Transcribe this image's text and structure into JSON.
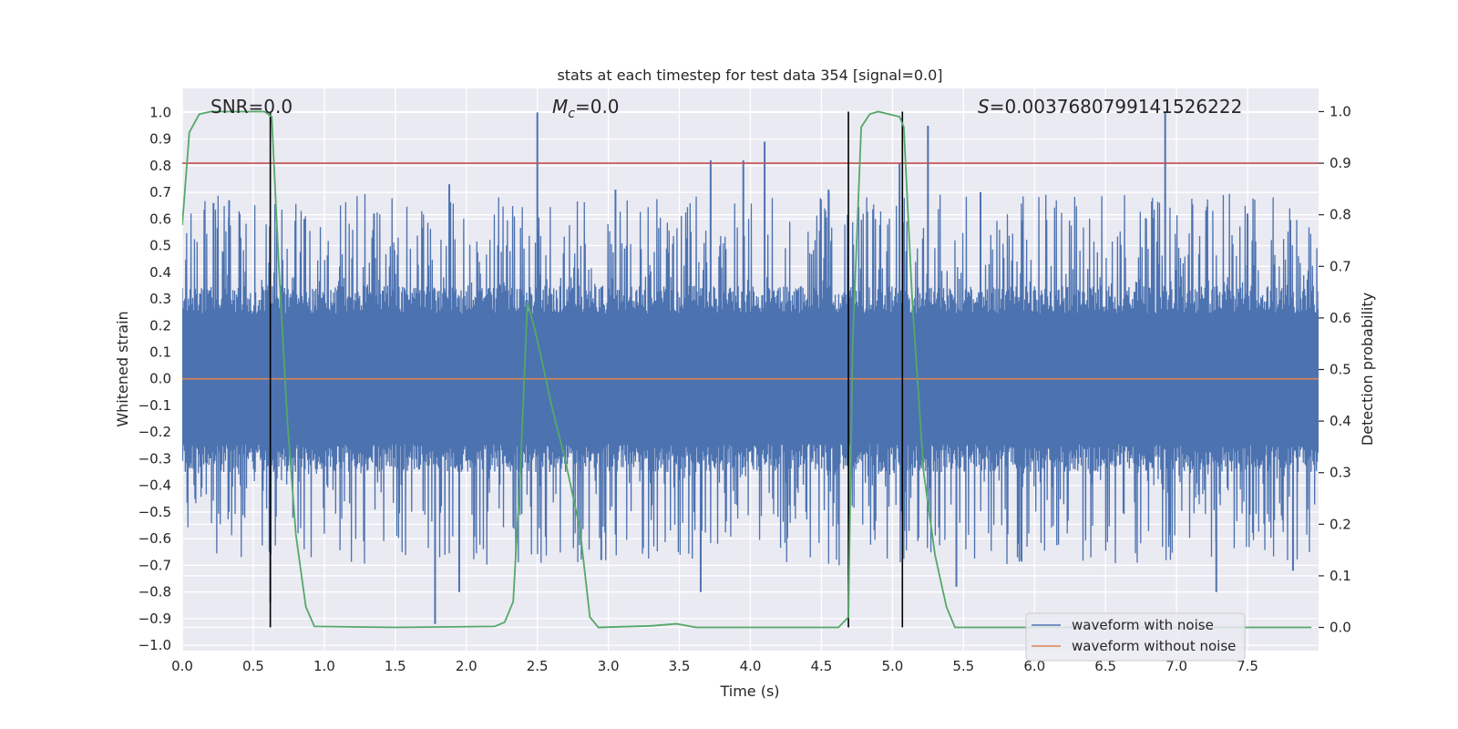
{
  "chart_data": {
    "type": "line",
    "title": "stats at each timestep for test data 354 [signal=0.0]",
    "xlabel": "Time (s)",
    "ylabel": "Whitened strain",
    "ylabel_right": "Detection probability",
    "xlim": [
      0.0,
      8.0
    ],
    "ylim": [
      -1.02,
      1.09
    ],
    "ylim_right": [
      -0.045,
      1.045
    ],
    "x_ticks": [
      0.0,
      0.5,
      1.0,
      1.5,
      2.0,
      2.5,
      3.0,
      3.5,
      4.0,
      4.5,
      5.0,
      5.5,
      6.0,
      6.5,
      7.0,
      7.5
    ],
    "x_tick_labels": [
      "0.0",
      "0.5",
      "1.0",
      "1.5",
      "2.0",
      "2.5",
      "3.0",
      "3.5",
      "4.0",
      "4.5",
      "5.0",
      "5.5",
      "6.0",
      "6.5",
      "7.0",
      "7.5"
    ],
    "y_ticks": [
      1.0,
      0.9,
      0.8,
      0.7,
      0.6,
      0.5,
      0.4,
      0.3,
      0.2,
      0.1,
      0.0,
      -0.1,
      -0.2,
      -0.3,
      -0.4,
      -0.5,
      -0.6,
      -0.7,
      -0.8,
      -0.9,
      -1.0
    ],
    "y_tick_labels": [
      "1.0",
      "0.9",
      "0.8",
      "0.7",
      "0.6",
      "0.5",
      "0.4",
      "0.3",
      "0.2",
      "0.1",
      "0.0",
      "−0.1",
      "−0.2",
      "−0.3",
      "−0.4",
      "−0.5",
      "−0.6",
      "−0.7",
      "−0.8",
      "−0.9",
      "−1.0"
    ],
    "y2_ticks": [
      1.0,
      0.9,
      0.8,
      0.7,
      0.6,
      0.5,
      0.4,
      0.3,
      0.2,
      0.1,
      0.0
    ],
    "y2_tick_labels": [
      "1.0",
      "0.9",
      "0.8",
      "0.7",
      "0.6",
      "0.5",
      "0.4",
      "0.3",
      "0.2",
      "0.1",
      "0.0"
    ],
    "annotations": {
      "snr": "SNR=0.0",
      "mc_symbol": "M",
      "mc_sub": "c",
      "mc_value": "=0.0",
      "s_symbol": "S",
      "s_value": "=0.0037680799141526222"
    },
    "threshold_right": 0.9,
    "vertical_markers_x": [
      0.62,
      4.69,
      5.07
    ],
    "series": [
      {
        "name": "waveform with noise",
        "color": "#4c72b0",
        "kind": "noise",
        "core_amplitude": 0.35,
        "spikes": [
          {
            "x": 0.22,
            "y": 0.66
          },
          {
            "x": 0.33,
            "y": 0.67
          },
          {
            "x": 0.62,
            "y": -0.84
          },
          {
            "x": 0.86,
            "y": 0.6
          },
          {
            "x": 1.35,
            "y": 0.62
          },
          {
            "x": 1.78,
            "y": -0.92
          },
          {
            "x": 1.88,
            "y": 0.73
          },
          {
            "x": 1.95,
            "y": -0.8
          },
          {
            "x": 2.5,
            "y": 1.0
          },
          {
            "x": 2.95,
            "y": -0.68
          },
          {
            "x": 3.05,
            "y": 0.71
          },
          {
            "x": 3.65,
            "y": -0.8
          },
          {
            "x": 3.72,
            "y": 0.82
          },
          {
            "x": 3.95,
            "y": 0.82
          },
          {
            "x": 4.1,
            "y": 0.89
          },
          {
            "x": 4.55,
            "y": 0.71
          },
          {
            "x": 5.05,
            "y": 0.81
          },
          {
            "x": 5.25,
            "y": 0.95
          },
          {
            "x": 5.45,
            "y": -0.78
          },
          {
            "x": 5.62,
            "y": 0.7
          },
          {
            "x": 6.92,
            "y": 1.0
          },
          {
            "x": 7.28,
            "y": -0.8
          },
          {
            "x": 7.5,
            "y": 0.62
          },
          {
            "x": 7.82,
            "y": -0.72
          }
        ]
      },
      {
        "name": "waveform without noise",
        "color": "#dd8452",
        "kind": "flat",
        "value": 0.0
      },
      {
        "name": "detection probability",
        "color": "#55a868",
        "axis": "right",
        "kind": "line",
        "points": [
          [
            0.0,
            0.78
          ],
          [
            0.05,
            0.96
          ],
          [
            0.12,
            0.995
          ],
          [
            0.2,
            1.0
          ],
          [
            0.58,
            1.0
          ],
          [
            0.63,
            0.99
          ],
          [
            0.68,
            0.7
          ],
          [
            0.74,
            0.4
          ],
          [
            0.8,
            0.18
          ],
          [
            0.87,
            0.04
          ],
          [
            0.93,
            0.002
          ],
          [
            1.5,
            0.0
          ],
          [
            2.2,
            0.002
          ],
          [
            2.27,
            0.01
          ],
          [
            2.33,
            0.05
          ],
          [
            2.38,
            0.3
          ],
          [
            2.43,
            0.63
          ],
          [
            2.48,
            0.58
          ],
          [
            2.53,
            0.52
          ],
          [
            2.6,
            0.43
          ],
          [
            2.7,
            0.32
          ],
          [
            2.8,
            0.19
          ],
          [
            2.87,
            0.02
          ],
          [
            2.93,
            0.0
          ],
          [
            3.3,
            0.003
          ],
          [
            3.48,
            0.007
          ],
          [
            3.62,
            0.0
          ],
          [
            4.62,
            0.0
          ],
          [
            4.69,
            0.02
          ],
          [
            4.72,
            0.55
          ],
          [
            4.78,
            0.97
          ],
          [
            4.84,
            0.995
          ],
          [
            4.9,
            1.0
          ],
          [
            5.05,
            0.99
          ],
          [
            5.08,
            0.97
          ],
          [
            5.14,
            0.63
          ],
          [
            5.22,
            0.3
          ],
          [
            5.3,
            0.14
          ],
          [
            5.38,
            0.04
          ],
          [
            5.44,
            0.0
          ],
          [
            7.95,
            0.0
          ]
        ]
      }
    ],
    "legend": {
      "position": "lower-right",
      "entries": [
        {
          "label": "waveform with noise",
          "color": "#4c72b0"
        },
        {
          "label": "waveform without noise",
          "color": "#dd8452"
        }
      ]
    },
    "style": {
      "background": "#eaeaf2",
      "grid": "#ffffff",
      "threshold_color": "#c44e52",
      "marker_color": "#000000"
    }
  }
}
